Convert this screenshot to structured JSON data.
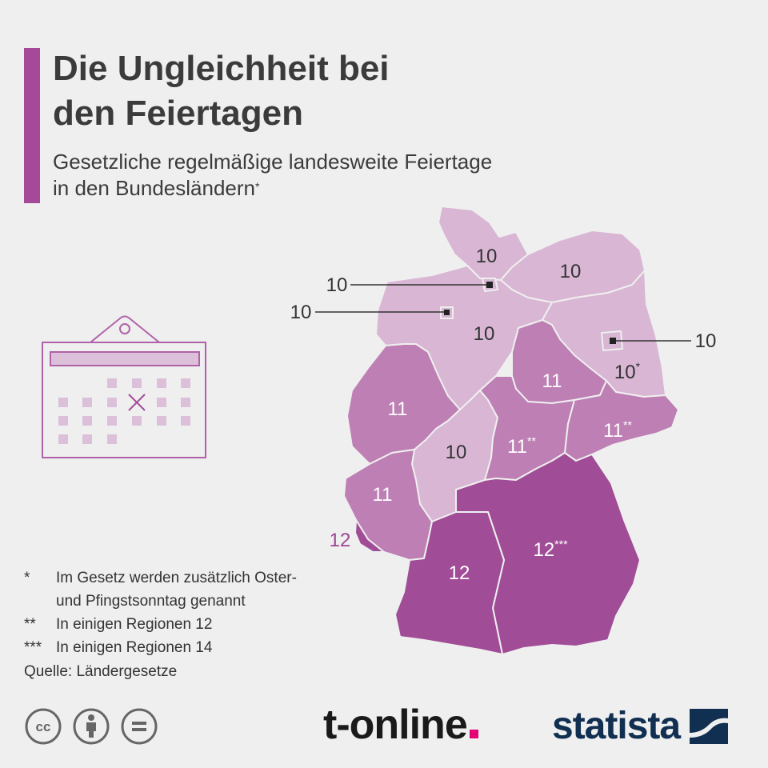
{
  "header": {
    "title_line1": "Die Ungleichheit bei",
    "title_line2": "den Feiertagen",
    "subtitle_line1": "Gesetzliche regelmäßige landesweite Feiertage",
    "subtitle_line2": "in den Bundesländern",
    "subtitle_mark": "*"
  },
  "map_data": {
    "colors": {
      "10": "#d8b6d4",
      "11": "#bd7fb4",
      "12": "#a04c96",
      "callout": "#333333",
      "saarland_label": "#9b4593"
    },
    "states": [
      {
        "name": "Schleswig-Holstein",
        "holidays": "10",
        "mark": ""
      },
      {
        "name": "Hamburg",
        "holidays": "10",
        "mark": ""
      },
      {
        "name": "Mecklenburg-Vorpommern",
        "holidays": "10",
        "mark": ""
      },
      {
        "name": "Bremen",
        "holidays": "10",
        "mark": ""
      },
      {
        "name": "Niedersachsen",
        "holidays": "10",
        "mark": ""
      },
      {
        "name": "Berlin",
        "holidays": "10",
        "mark": ""
      },
      {
        "name": "Brandenburg",
        "holidays": "10",
        "mark": "*"
      },
      {
        "name": "Sachsen-Anhalt",
        "holidays": "11",
        "mark": ""
      },
      {
        "name": "Nordrhein-Westfalen",
        "holidays": "11",
        "mark": ""
      },
      {
        "name": "Thüringen",
        "holidays": "11",
        "mark": "**"
      },
      {
        "name": "Sachsen",
        "holidays": "11",
        "mark": "**"
      },
      {
        "name": "Hessen",
        "holidays": "10",
        "mark": ""
      },
      {
        "name": "Rheinland-Pfalz",
        "holidays": "11",
        "mark": ""
      },
      {
        "name": "Saarland",
        "holidays": "12",
        "mark": ""
      },
      {
        "name": "Baden-Württemberg",
        "holidays": "12",
        "mark": ""
      },
      {
        "name": "Bayern",
        "holidays": "12",
        "mark": "***"
      }
    ]
  },
  "notes": [
    {
      "mark": "*",
      "line1": "Im Gesetz werden zusätzlich Oster-",
      "line2": "und Pfingstsonntag genannt"
    },
    {
      "mark": "**",
      "line1": "In einigen Regionen 12",
      "line2": ""
    },
    {
      "mark": "***",
      "line1": "In einigen Regionen 14",
      "line2": ""
    }
  ],
  "source": "Quelle: Ländergesetze",
  "footer": {
    "cc_icons": [
      "cc-icon",
      "by-icon",
      "nd-icon"
    ],
    "publisher_logo": "t-online",
    "statista_logo": "statista",
    "statista_color": "#102f51",
    "tonline_dot_color": "#e20074"
  }
}
